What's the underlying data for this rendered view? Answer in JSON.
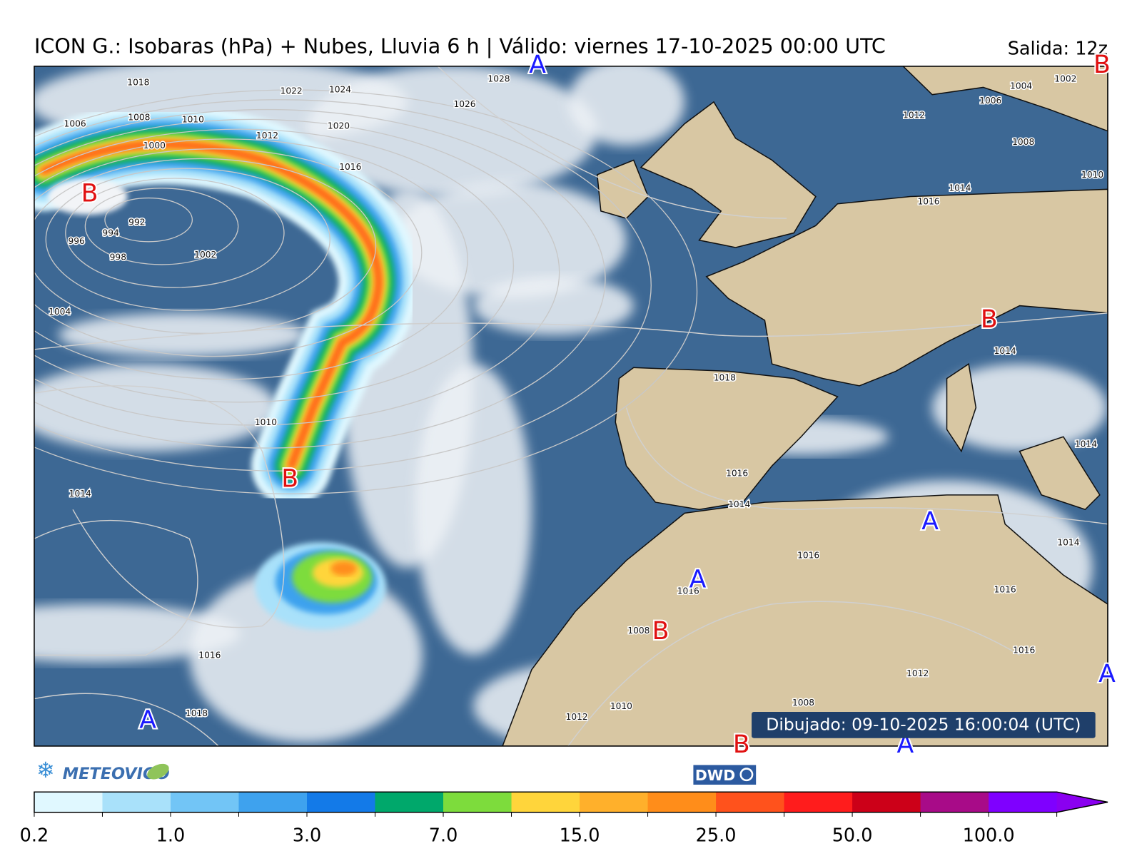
{
  "header": {
    "title": "ICON G.: Isobaras (hPa) + Nubes, Lluvia 6 h | Válido: viernes 17-10-2025 00:00 UTC",
    "run": "Salida: 12z"
  },
  "map": {
    "drawn": "Dibujado: 09-10-2025 16:00:04 (UTC)",
    "isobar_labels": [
      "1018",
      "1022",
      "1024",
      "1028",
      "1026",
      "1020",
      "1016",
      "1012",
      "1010",
      "1008",
      "1006",
      "1000",
      "992",
      "994",
      "996",
      "998",
      "1002",
      "1004",
      "1010",
      "1014",
      "1016",
      "1018",
      "1018",
      "1016",
      "1014",
      "1016",
      "1016",
      "1008",
      "1012",
      "1010",
      "1008",
      "1012",
      "1016",
      "1016",
      "1014",
      "1014",
      "1014",
      "1016",
      "1014",
      "1010",
      "1012",
      "1006",
      "1004",
      "1002",
      "1008"
    ],
    "pressure_centers": [
      {
        "label": "A",
        "color": "#1a1aff"
      },
      {
        "label": "B",
        "color": "#e01010"
      },
      {
        "label": "B",
        "color": "#e01010"
      },
      {
        "label": "B",
        "color": "#e01010"
      },
      {
        "label": "B",
        "color": "#e01010"
      },
      {
        "label": "A",
        "color": "#1a1aff"
      },
      {
        "label": "A",
        "color": "#1a1aff"
      },
      {
        "label": "B",
        "color": "#e01010"
      },
      {
        "label": "A",
        "color": "#1a1aff"
      },
      {
        "label": "B",
        "color": "#e01010"
      },
      {
        "label": "A",
        "color": "#1a1aff"
      },
      {
        "label": "A",
        "color": "#1a1aff"
      }
    ]
  },
  "logos": {
    "meteovigo": "METEOVIGO",
    "dwd": "DWD"
  },
  "colorbar": {
    "colors": [
      "#e0f8ff",
      "#a9e1fa",
      "#72c5f6",
      "#3ea2ee",
      "#137ae8",
      "#00a86b",
      "#7ddc3c",
      "#ffd53b",
      "#ffb02b",
      "#ff8d1a",
      "#ff521c",
      "#ff1c1c",
      "#cc0018",
      "#a80b88",
      "#7f00ff"
    ],
    "extend_color": "#8a00f0",
    "ticks": [
      "0.2",
      "1.0",
      "3.0",
      "7.0",
      "15.0",
      "25.0",
      "50.0",
      "100.0"
    ]
  }
}
